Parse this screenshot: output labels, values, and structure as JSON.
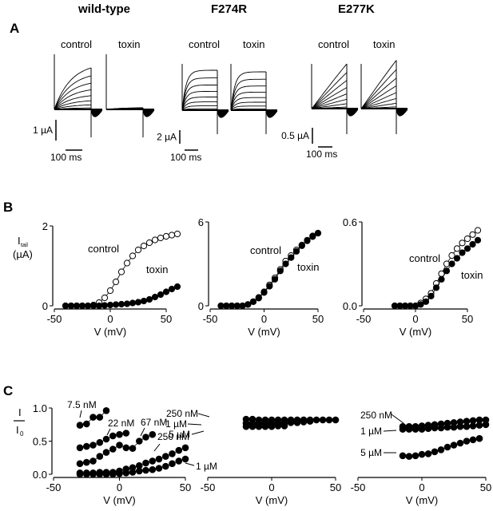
{
  "columns": [
    "wild-type",
    "F274R",
    "E277K"
  ],
  "panel_letters": [
    "A",
    "B",
    "C"
  ],
  "panel_a": {
    "trace_labels": [
      "control",
      "toxin"
    ],
    "scale_bars": [
      {
        "current": "1 µA",
        "time": "100 ms"
      },
      {
        "current": "2 µA",
        "time": "100 ms"
      },
      {
        "current": "0.5 µA",
        "time": "100 ms"
      }
    ]
  },
  "chart_data": [
    {
      "type": "scatter",
      "panel": "B",
      "title": "wild-type",
      "xlabel": "V (mV)",
      "ylabel": "I_tail (µA)",
      "xlim": [
        -50,
        60
      ],
      "ylim": [
        0,
        2
      ],
      "xticks": [
        "-50",
        "0",
        "50"
      ],
      "yticks": [
        "0",
        "2"
      ],
      "x": [
        -40,
        -35,
        -30,
        -25,
        -20,
        -15,
        -10,
        -5,
        0,
        5,
        10,
        15,
        20,
        25,
        30,
        35,
        40,
        45,
        50,
        55,
        60
      ],
      "series": [
        {
          "name": "control",
          "marker": "open",
          "values": [
            0,
            0,
            0,
            0,
            0,
            0.02,
            0.08,
            0.2,
            0.38,
            0.6,
            0.85,
            1.07,
            1.25,
            1.4,
            1.5,
            1.58,
            1.65,
            1.7,
            1.74,
            1.77,
            1.8
          ]
        },
        {
          "name": "toxin",
          "marker": "filled",
          "values": [
            0,
            0,
            0,
            0,
            0,
            0,
            0,
            0.01,
            0.02,
            0.03,
            0.04,
            0.05,
            0.07,
            0.09,
            0.12,
            0.16,
            0.22,
            0.28,
            0.35,
            0.42,
            0.48
          ]
        }
      ]
    },
    {
      "type": "scatter",
      "panel": "B",
      "title": "F274R",
      "xlabel": "V (mV)",
      "ylabel": "",
      "xlim": [
        -50,
        50
      ],
      "ylim": [
        0,
        6
      ],
      "xticks": [
        "-50",
        "0",
        "50"
      ],
      "yticks": [
        "0",
        "6"
      ],
      "x": [
        -40,
        -35,
        -30,
        -25,
        -20,
        -15,
        -10,
        -5,
        0,
        5,
        10,
        15,
        20,
        25,
        30,
        35,
        40,
        45,
        50
      ],
      "series": [
        {
          "name": "control",
          "marker": "open",
          "values": [
            0,
            0,
            0,
            0,
            0,
            0.1,
            0.3,
            0.6,
            1.0,
            1.5,
            2.0,
            2.6,
            3.2,
            3.6,
            4.0,
            4.35,
            4.7,
            5.0,
            5.2
          ]
        },
        {
          "name": "toxin",
          "marker": "filled",
          "values": [
            0,
            0,
            0,
            0,
            0,
            0.1,
            0.3,
            0.55,
            0.95,
            1.4,
            1.9,
            2.5,
            3.0,
            3.45,
            3.9,
            4.3,
            4.65,
            4.95,
            5.2
          ]
        }
      ]
    },
    {
      "type": "scatter",
      "panel": "B",
      "title": "E277K",
      "xlabel": "V (mV)",
      "ylabel": "",
      "xlim": [
        -50,
        60
      ],
      "ylim": [
        0,
        0.6
      ],
      "xticks": [
        "-50",
        "0",
        "50"
      ],
      "yticks": [
        "0.0",
        "0.6"
      ],
      "x": [
        -20,
        -15,
        -10,
        -5,
        0,
        5,
        10,
        15,
        20,
        25,
        30,
        35,
        40,
        45,
        50,
        55,
        60
      ],
      "series": [
        {
          "name": "control",
          "marker": "open",
          "values": [
            0,
            0,
            0,
            0,
            0,
            0.02,
            0.05,
            0.09,
            0.16,
            0.23,
            0.3,
            0.36,
            0.41,
            0.45,
            0.48,
            0.51,
            0.54
          ]
        },
        {
          "name": "toxin",
          "marker": "filled",
          "values": [
            0,
            0,
            0,
            0,
            0,
            0.01,
            0.03,
            0.07,
            0.13,
            0.19,
            0.25,
            0.3,
            0.34,
            0.38,
            0.41,
            0.44,
            0.47
          ]
        }
      ]
    },
    {
      "type": "scatter",
      "panel": "C",
      "title": "wild-type",
      "xlabel": "V (mV)",
      "ylabel": "I / I0",
      "xlim": [
        -50,
        50
      ],
      "ylim": [
        0,
        1.0
      ],
      "xticks": [
        "-50",
        "0",
        "50"
      ],
      "yticks": [
        "0.0",
        "0.5",
        "1.0"
      ],
      "series": [
        {
          "name": "7.5 nM",
          "x": [
            -30,
            -25,
            -20,
            -15,
            -10
          ],
          "values": [
            0.74,
            0.76,
            0.86,
            0.86,
            0.96
          ]
        },
        {
          "name": "22 nM",
          "x": [
            -30,
            -25,
            -20,
            -15,
            -10,
            -5,
            0,
            5
          ],
          "values": [
            0.4,
            0.42,
            0.44,
            0.48,
            0.53,
            0.58,
            0.6,
            0.62
          ]
        },
        {
          "name": "67 nM",
          "x": [
            -30,
            -25,
            -20,
            -15,
            -10,
            -5,
            0,
            5,
            10,
            15,
            20,
            25
          ],
          "values": [
            0.16,
            0.18,
            0.2,
            0.27,
            0.33,
            0.38,
            0.44,
            0.4,
            0.39,
            0.5,
            0.56,
            0.6
          ]
        },
        {
          "name": "250 nM",
          "x": [
            -30,
            -25,
            -20,
            -15,
            -10,
            -5,
            0,
            5,
            10,
            15,
            20,
            25,
            30,
            35,
            40,
            45,
            50
          ],
          "values": [
            0.02,
            0.02,
            0.02,
            0.03,
            0.03,
            0.03,
            0.05,
            0.08,
            0.1,
            0.13,
            0.17,
            0.2,
            0.23,
            0.27,
            0.31,
            0.36,
            0.4
          ]
        },
        {
          "name": "1 µM",
          "x": [
            -30,
            -25,
            -20,
            -15,
            -10,
            -5,
            0,
            5,
            10,
            15,
            20,
            25,
            30,
            35,
            40,
            45,
            50
          ],
          "values": [
            0,
            0,
            0,
            0,
            0,
            0,
            0.01,
            0.02,
            0.03,
            0.05,
            0.06,
            0.07,
            0.09,
            0.12,
            0.16,
            0.2,
            0.23
          ]
        }
      ]
    },
    {
      "type": "scatter",
      "panel": "C",
      "title": "F274R",
      "xlabel": "V (mV)",
      "ylabel": "",
      "xlim": [
        -50,
        50
      ],
      "ylim": [
        0,
        1.0
      ],
      "xticks": [
        "-50",
        "0",
        "50"
      ],
      "yticks": [],
      "series": [
        {
          "name": "250 nM",
          "x": [
            -20,
            -15,
            -10,
            -5,
            0,
            5,
            10,
            15,
            20,
            25,
            30,
            35,
            40,
            45,
            50
          ],
          "values": [
            0.83,
            0.83,
            0.82,
            0.82,
            0.82,
            0.82,
            0.82,
            0.82,
            0.82,
            0.82,
            0.82,
            0.82,
            0.82,
            0.82,
            0.82
          ]
        },
        {
          "name": "1 µM",
          "x": [
            -20,
            -15,
            -10,
            -5,
            0,
            5,
            10,
            15,
            20,
            25,
            30
          ],
          "values": [
            0.77,
            0.77,
            0.77,
            0.77,
            0.77,
            0.77,
            0.77,
            0.78,
            0.78,
            0.79,
            0.8
          ]
        },
        {
          "name": "5 µM",
          "x": [
            -20,
            -15,
            -10,
            -5,
            0,
            5,
            10
          ],
          "values": [
            0.72,
            0.72,
            0.72,
            0.72,
            0.72,
            0.73,
            0.73
          ]
        }
      ]
    },
    {
      "type": "scatter",
      "panel": "C",
      "title": "E277K",
      "xlabel": "V (mV)",
      "ylabel": "",
      "xlim": [
        -50,
        50
      ],
      "ylim": [
        0,
        1.0
      ],
      "xticks": [
        "-50",
        "0",
        "50"
      ],
      "yticks": [],
      "series": [
        {
          "name": "250 nM",
          "x": [
            -15,
            -10,
            -5,
            0,
            5,
            10,
            15,
            20,
            25,
            30,
            35,
            40,
            45,
            50
          ],
          "values": [
            0.72,
            0.72,
            0.72,
            0.73,
            0.74,
            0.75,
            0.76,
            0.77,
            0.78,
            0.79,
            0.8,
            0.81,
            0.82,
            0.82
          ]
        },
        {
          "name": "1 µM",
          "x": [
            -15,
            -10,
            -5,
            0,
            5,
            10,
            15,
            20,
            25,
            30,
            35,
            40,
            45,
            50
          ],
          "values": [
            0.68,
            0.68,
            0.68,
            0.68,
            0.69,
            0.7,
            0.7,
            0.71,
            0.71,
            0.72,
            0.72,
            0.73,
            0.74,
            0.75
          ]
        },
        {
          "name": "5 µM",
          "x": [
            -15,
            -10,
            -5,
            0,
            5,
            10,
            15,
            20,
            25,
            30,
            35,
            40,
            45
          ],
          "values": [
            0.28,
            0.27,
            0.28,
            0.3,
            0.31,
            0.34,
            0.37,
            0.41,
            0.44,
            0.47,
            0.5,
            0.52,
            0.54
          ]
        }
      ]
    }
  ]
}
